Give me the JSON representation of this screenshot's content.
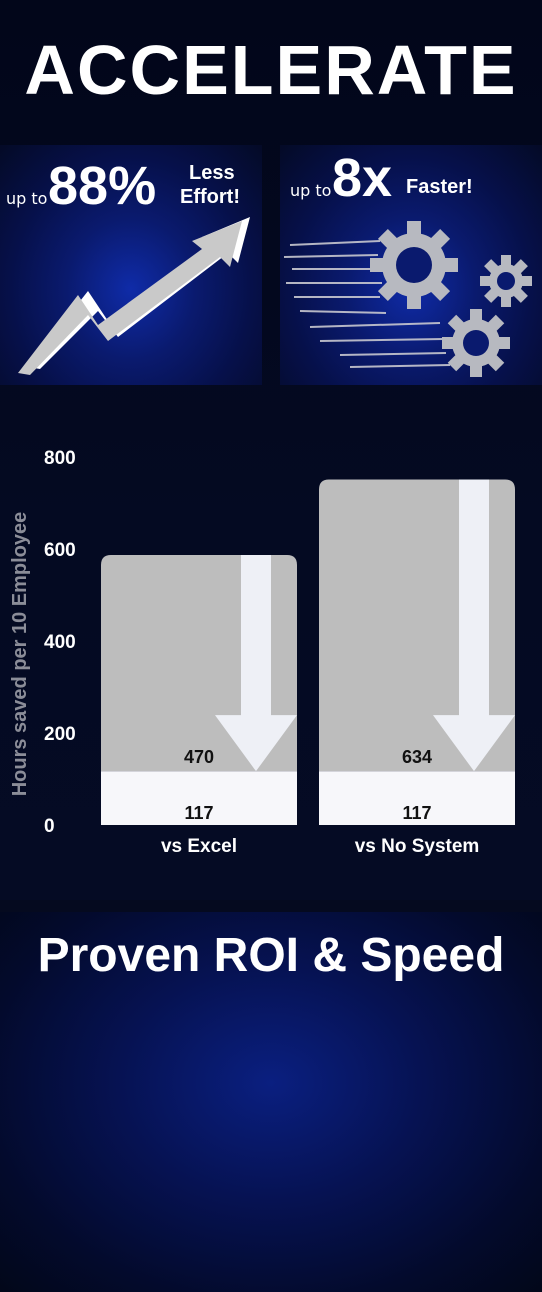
{
  "headline": "ACCELERATE",
  "card_effort": {
    "prefix": "up to",
    "value": "88%",
    "line1": "Less",
    "line2": "Effort!",
    "icon": "rising-arrow-icon"
  },
  "card_speed": {
    "prefix": "up to",
    "value": "8x",
    "label": "Faster!",
    "icon": "gears-icon"
  },
  "footer_title": "Proven ROI & Speed",
  "colors": {
    "background": "#050a1f",
    "bar_gray": "#bdbdbd",
    "bar_white": "#f7f7fa",
    "arrow": "#eef0f6"
  },
  "chart_data": {
    "type": "bar",
    "ylabel": "Hours saved per 10 Employee",
    "ylim": [
      0,
      800
    ],
    "yticks": [
      0,
      200,
      400,
      600,
      800
    ],
    "categories": [
      "vs Excel",
      "vs No System"
    ],
    "series": [
      {
        "values": [
          117,
          117
        ]
      },
      {
        "values": [
          470,
          634
        ]
      }
    ],
    "stacked": true,
    "grid": false
  }
}
